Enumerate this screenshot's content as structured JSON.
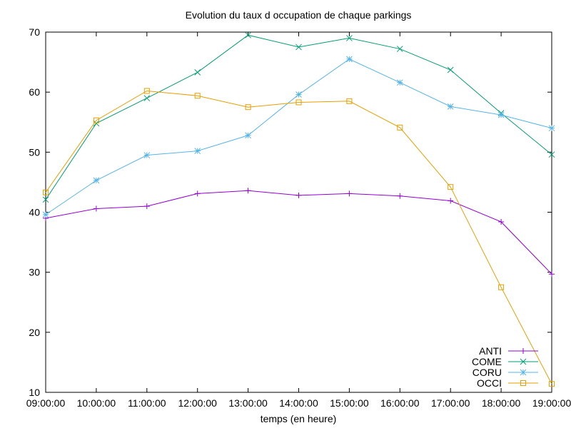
{
  "chart_data": {
    "type": "line",
    "title": "Evolution du taux d occupation de chaque parkings",
    "xlabel": "temps (en heure)",
    "ylabel": "",
    "categories": [
      "09:00:00",
      "10:00:00",
      "11:00:00",
      "12:00:00",
      "13:00:00",
      "14:00:00",
      "15:00:00",
      "16:00:00",
      "17:00:00",
      "18:00:00",
      "19:00:00"
    ],
    "ylim": [
      10,
      70
    ],
    "yticks": [
      10,
      20,
      30,
      40,
      50,
      60,
      70
    ],
    "grid": false,
    "legend_position": "bottom-right",
    "series": [
      {
        "name": "ANTI",
        "color": "#9400d3",
        "marker": "plus",
        "values": [
          39.0,
          40.6,
          41.0,
          43.1,
          43.6,
          42.8,
          43.1,
          42.7,
          41.9,
          38.4,
          29.7
        ]
      },
      {
        "name": "COME",
        "color": "#009e73",
        "marker": "cross",
        "values": [
          42.1,
          54.8,
          59.0,
          63.3,
          69.5,
          67.5,
          69.0,
          67.2,
          63.7,
          56.5,
          49.6
        ]
      },
      {
        "name": "CORU",
        "color": "#56b4e9",
        "marker": "star",
        "values": [
          39.6,
          45.3,
          49.5,
          50.2,
          52.8,
          59.6,
          65.5,
          61.6,
          57.6,
          56.2,
          54.0
        ]
      },
      {
        "name": "OCCI",
        "color": "#e69f00",
        "marker": "square",
        "values": [
          43.3,
          55.3,
          60.2,
          59.4,
          57.5,
          58.3,
          58.5,
          54.1,
          44.2,
          27.5,
          11.4
        ]
      }
    ]
  }
}
